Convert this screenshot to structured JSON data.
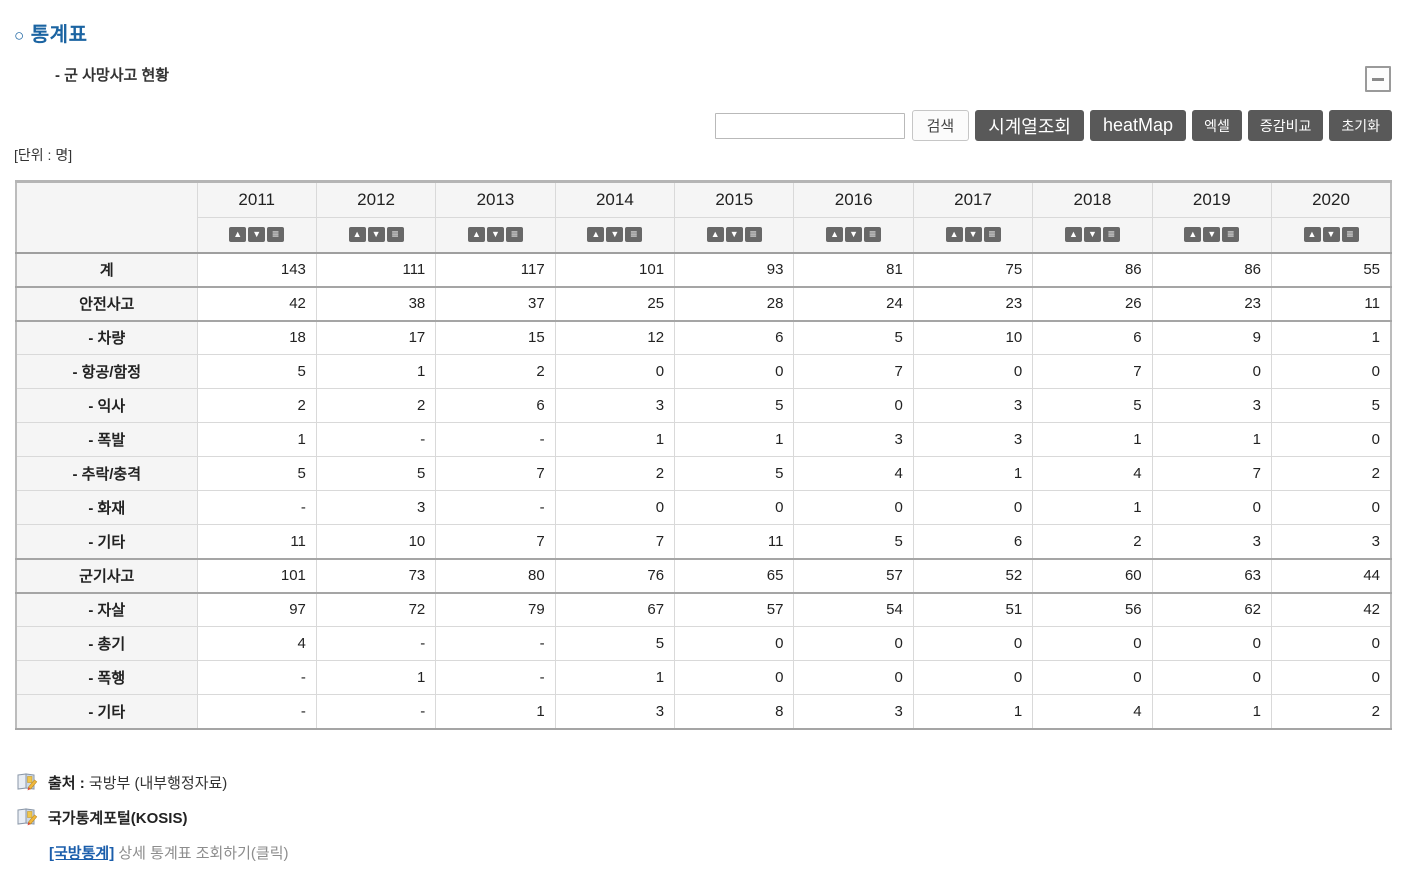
{
  "page": {
    "title_bullet": "○",
    "title": "통계표",
    "subtitle": "- 군 사망사고 현황",
    "unit_label": "[단위 : 명]"
  },
  "toolbar": {
    "search_value": "",
    "search_button": "검색",
    "buttons": [
      "시계열조회",
      "heatMap",
      "엑셀",
      "증감비교",
      "초기화"
    ]
  },
  "table": {
    "years": [
      "2011",
      "2012",
      "2013",
      "2014",
      "2015",
      "2016",
      "2017",
      "2018",
      "2019",
      "2020"
    ],
    "sort": {
      "asc_icon": "▲",
      "desc_icon": "▼",
      "menu_icon": "≡"
    },
    "rows": [
      {
        "label": "계",
        "sep": true,
        "values": [
          "143",
          "111",
          "117",
          "101",
          "93",
          "81",
          "75",
          "86",
          "86",
          "55"
        ]
      },
      {
        "label": "안전사고",
        "sep": true,
        "values": [
          "42",
          "38",
          "37",
          "25",
          "28",
          "24",
          "23",
          "26",
          "23",
          "11"
        ]
      },
      {
        "label": "- 차량",
        "sep": true,
        "values": [
          "18",
          "17",
          "15",
          "12",
          "6",
          "5",
          "10",
          "6",
          "9",
          "1"
        ]
      },
      {
        "label": "- 항공/함정",
        "sep": false,
        "values": [
          "5",
          "1",
          "2",
          "0",
          "0",
          "7",
          "0",
          "7",
          "0",
          "0"
        ]
      },
      {
        "label": "- 익사",
        "sep": false,
        "values": [
          "2",
          "2",
          "6",
          "3",
          "5",
          "0",
          "3",
          "5",
          "3",
          "5"
        ]
      },
      {
        "label": "- 폭발",
        "sep": false,
        "values": [
          "1",
          "-",
          "-",
          "1",
          "1",
          "3",
          "3",
          "1",
          "1",
          "0"
        ]
      },
      {
        "label": "- 추락/충격",
        "sep": false,
        "values": [
          "5",
          "5",
          "7",
          "2",
          "5",
          "4",
          "1",
          "4",
          "7",
          "2"
        ]
      },
      {
        "label": "- 화재",
        "sep": false,
        "values": [
          "-",
          "3",
          "-",
          "0",
          "0",
          "0",
          "0",
          "1",
          "0",
          "0"
        ]
      },
      {
        "label": "- 기타",
        "sep": false,
        "values": [
          "11",
          "10",
          "7",
          "7",
          "11",
          "5",
          "6",
          "2",
          "3",
          "3"
        ]
      },
      {
        "label": "군기사고",
        "sep": true,
        "values": [
          "101",
          "73",
          "80",
          "76",
          "65",
          "57",
          "52",
          "60",
          "63",
          "44"
        ]
      },
      {
        "label": "- 자살",
        "sep": true,
        "values": [
          "97",
          "72",
          "79",
          "67",
          "57",
          "54",
          "51",
          "56",
          "62",
          "42"
        ]
      },
      {
        "label": "- 총기",
        "sep": false,
        "values": [
          "4",
          "-",
          "-",
          "5",
          "0",
          "0",
          "0",
          "0",
          "0",
          "0"
        ]
      },
      {
        "label": "- 폭행",
        "sep": false,
        "values": [
          "-",
          "1",
          "-",
          "1",
          "0",
          "0",
          "0",
          "0",
          "0",
          "0"
        ]
      },
      {
        "label": "- 기타",
        "sep": false,
        "values": [
          "-",
          "-",
          "1",
          "3",
          "8",
          "3",
          "1",
          "4",
          "1",
          "2"
        ]
      }
    ]
  },
  "footer": {
    "source_label": "출처 :",
    "source_value": " 국방부 (내부행정자료)",
    "portal": "국가통계포털(KOSIS)",
    "link_label": "[국방통계]",
    "link_suffix": " 상세 통계표 조회하기(클릭)"
  },
  "colors": {
    "title_blue": "#1b64a2",
    "link_blue": "#1b5eab",
    "button_dark": "#595959",
    "header_bg": "#f5f5f5",
    "border_light": "#d9d9d9",
    "border_dark": "#a5a5a5"
  }
}
